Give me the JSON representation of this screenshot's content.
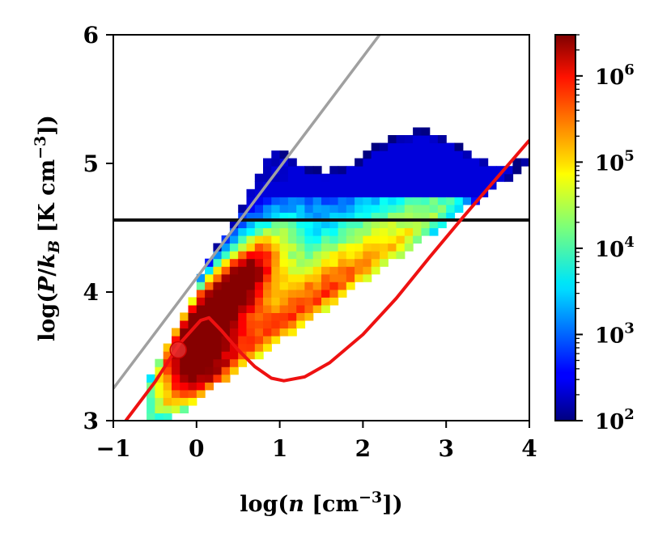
{
  "chart_data": {
    "type": "heatmap",
    "xlabel": "log(n [cm^-3])",
    "ylabel": "log(P/k_B [K cm^-3])",
    "xlim": [
      -1,
      4
    ],
    "ylim": [
      3,
      6
    ],
    "xticks": [
      "−1",
      "0",
      "1",
      "2",
      "3",
      "4"
    ],
    "yticks": [
      "3",
      "4",
      "5",
      "6"
    ],
    "colorbar": {
      "scale": "log",
      "range": [
        100,
        3000000
      ],
      "tick_values": [
        100,
        1000,
        10000,
        100000,
        1000000
      ],
      "ticks": [
        "10^2",
        "10^3",
        "10^4",
        "10^5",
        "10^6"
      ],
      "colormap": "jet"
    },
    "grid": false,
    "histogram_description": "2D histogram of log density vs log pressure; peak (~2e6) near log n 0.3-0.6, log P 3.9-4.2",
    "lines": [
      {
        "type": "horizontal",
        "y": 4.56,
        "color": "#111111"
      },
      {
        "type": "line",
        "x": [
          -1,
          2.2
        ],
        "y": [
          3.25,
          6.0
        ],
        "color": "#a0a0a0"
      },
      {
        "type": "curve",
        "color": "#ee1111",
        "x": [
          -0.85,
          -0.5,
          -0.2,
          0.05,
          0.15,
          0.3,
          0.5,
          0.7,
          0.9,
          1.05,
          1.3,
          1.6,
          2.0,
          2.4,
          2.8,
          3.2,
          3.6,
          4.0
        ],
        "y": [
          3.0,
          3.3,
          3.6,
          3.78,
          3.8,
          3.7,
          3.55,
          3.42,
          3.33,
          3.31,
          3.34,
          3.45,
          3.67,
          3.95,
          4.27,
          4.58,
          4.88,
          5.18
        ]
      }
    ],
    "marker": {
      "x": -0.22,
      "y": 3.55,
      "color": "#ee3333"
    }
  }
}
